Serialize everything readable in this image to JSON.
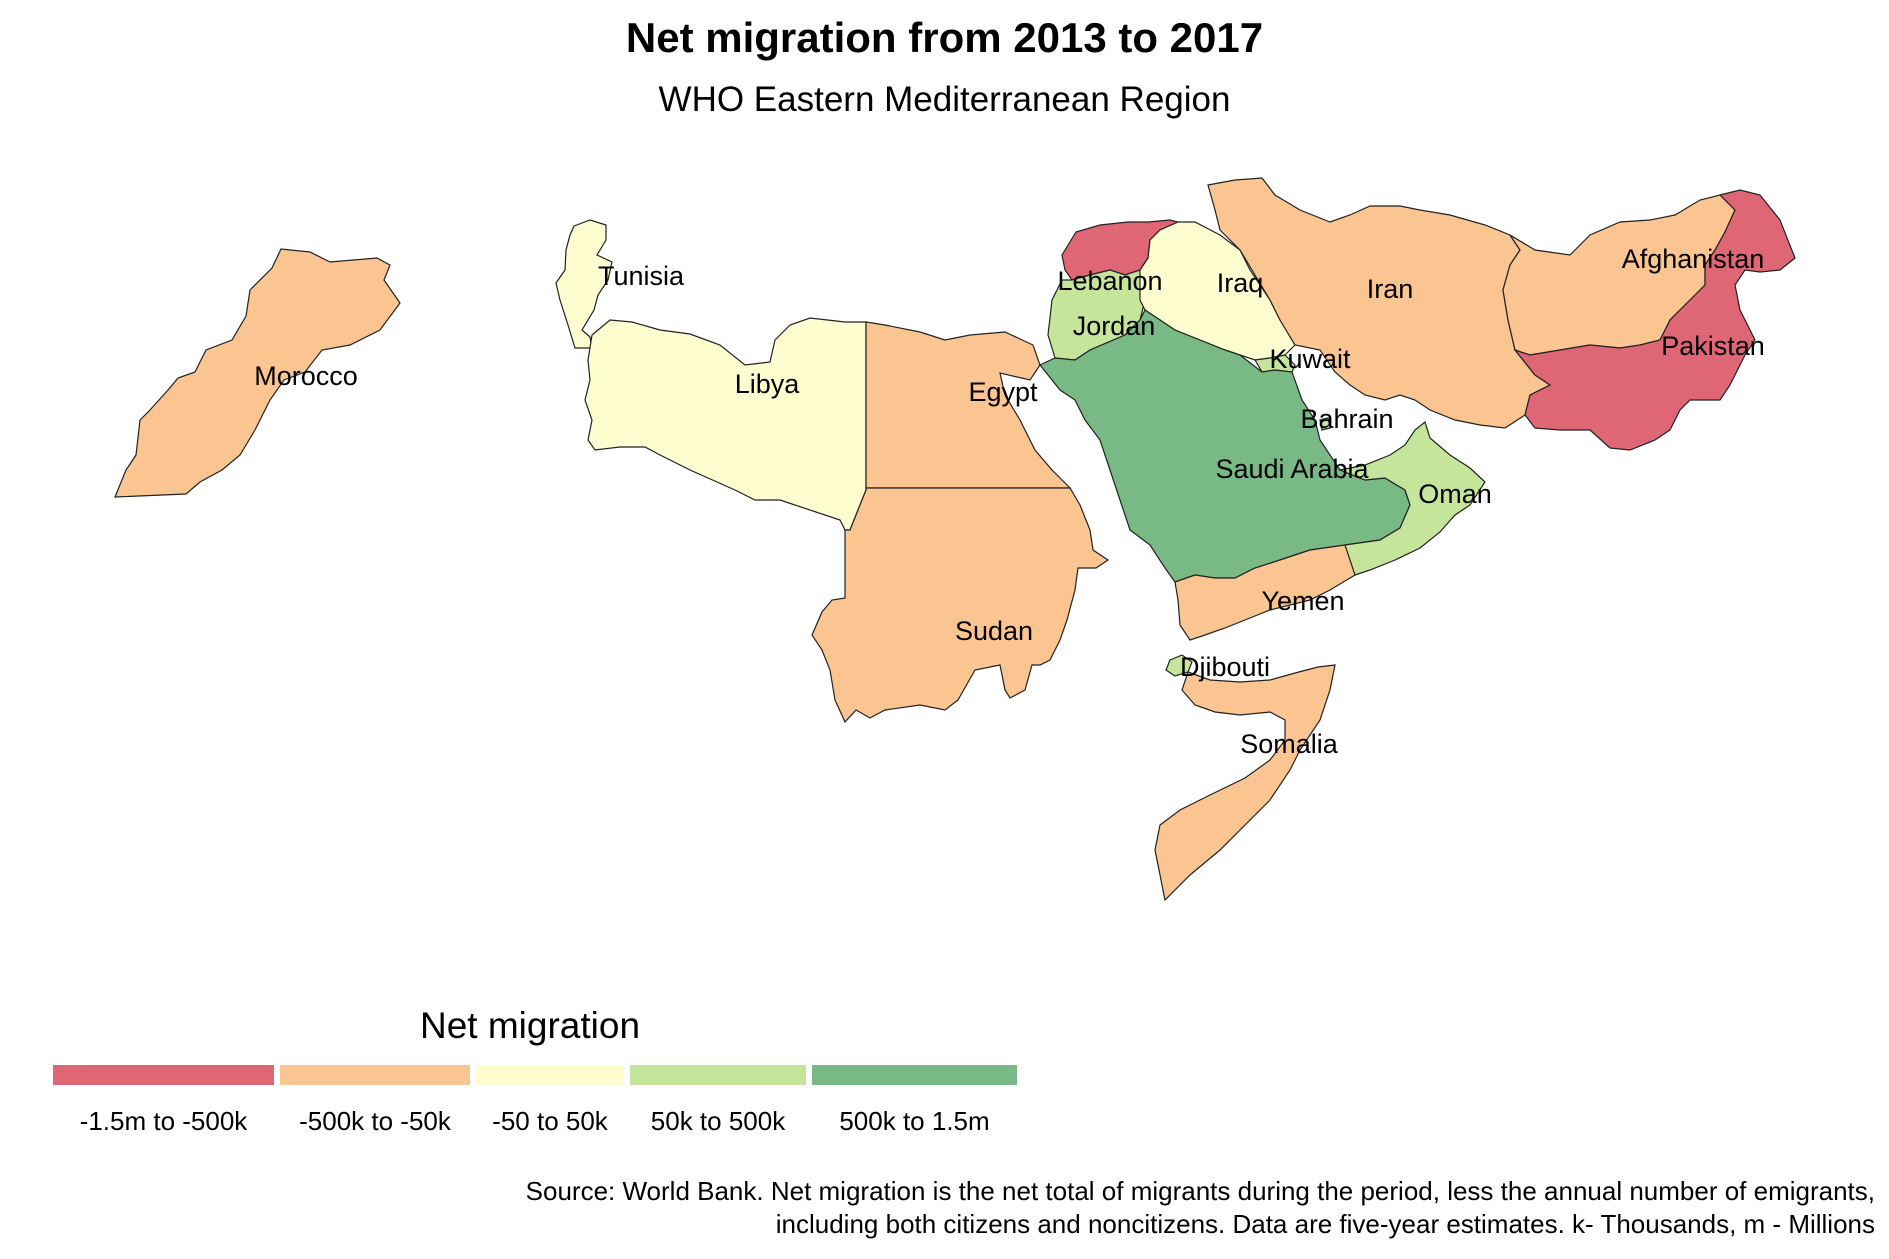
{
  "title": "Net migration from 2013 to 2017",
  "subtitle": "WHO Eastern Mediterranean Region",
  "legend": {
    "title": "Net migration",
    "bins": [
      {
        "label": "-1.5m to -500k",
        "color": "#df6674"
      },
      {
        "label": "-500k to -50k",
        "color": "#fbc592"
      },
      {
        "label": "-50 to 50k",
        "color": "#fefdd0"
      },
      {
        "label": "50k to 500k",
        "color": "#c4e59a"
      },
      {
        "label": "500k to  1.5m",
        "color": "#78b986"
      }
    ]
  },
  "countries": [
    {
      "name": "Morocco",
      "bin": 1
    },
    {
      "name": "Tunisia",
      "bin": 2
    },
    {
      "name": "Libya",
      "bin": 2
    },
    {
      "name": "Egypt",
      "bin": 1
    },
    {
      "name": "Sudan",
      "bin": 1
    },
    {
      "name": "Lebanon",
      "bin": 0
    },
    {
      "name": "Jordan",
      "bin": 3
    },
    {
      "name": "Iraq",
      "bin": 2
    },
    {
      "name": "Kuwait",
      "bin": 3
    },
    {
      "name": "Bahrain",
      "bin": 3
    },
    {
      "name": "Saudi Arabia",
      "bin": 4
    },
    {
      "name": "Oman",
      "bin": 3
    },
    {
      "name": "Yemen",
      "bin": 1
    },
    {
      "name": "Djibouti",
      "bin": 3
    },
    {
      "name": "Somalia",
      "bin": 1
    },
    {
      "name": "Iran",
      "bin": 1
    },
    {
      "name": "Afghanistan",
      "bin": 1
    },
    {
      "name": "Pakistan",
      "bin": 0
    }
  ],
  "source": {
    "line1": "Source: World Bank. Net migration is the net total of migrants during the period, less the annual number of emigrants,",
    "line2": "including both citizens and noncitizens. Data are five-year estimates. k- Thousands, m - Millions"
  }
}
